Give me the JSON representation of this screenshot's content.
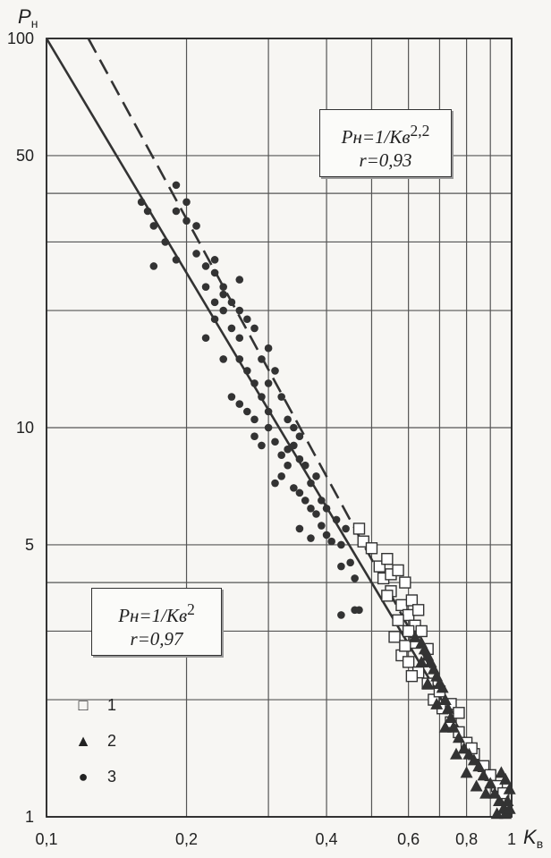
{
  "chart_data": {
    "type": "scatter",
    "x_scale": "log",
    "y_scale": "log",
    "xlim": [
      0.1,
      1
    ],
    "ylim": [
      1,
      100
    ],
    "xlabel": "Kв",
    "ylabel": "Pн",
    "x_tick_labels": [
      "0,1",
      "0,2",
      "0,4",
      "0,6",
      "0,8",
      "1"
    ],
    "y_tick_labels": [
      "100",
      "50",
      "10",
      "5",
      "1"
    ],
    "grid": true,
    "curves": [
      {
        "formula_prefix": "Pн=1/Kв",
        "exponent": "2",
        "r": "r=0,97",
        "style": "solid",
        "exponent_value": 2.0,
        "x": [
          0.1,
          1
        ],
        "y": [
          100,
          1
        ]
      },
      {
        "formula_prefix": "Pн=1/Kв",
        "exponent": "2,2",
        "r": "r=0,93",
        "style": "dashed",
        "exponent_value": 2.2,
        "x": [
          0.123,
          0.7
        ],
        "y": [
          100,
          2.19
        ]
      }
    ],
    "legend": {
      "placement": "bottom-left",
      "entries": [
        {
          "marker": "square",
          "label": "1"
        },
        {
          "marker": "triangle",
          "label": "2"
        },
        {
          "marker": "circle",
          "label": "3"
        }
      ]
    },
    "series": [
      {
        "legend": "1",
        "marker": "square",
        "points": [
          [
            0.47,
            5.5
          ],
          [
            0.48,
            5.1
          ],
          [
            0.5,
            4.9
          ],
          [
            0.52,
            4.4
          ],
          [
            0.53,
            4.1
          ],
          [
            0.54,
            4.6
          ],
          [
            0.55,
            4.2
          ],
          [
            0.55,
            3.8
          ],
          [
            0.57,
            4.3
          ],
          [
            0.58,
            3.5
          ],
          [
            0.59,
            4.0
          ],
          [
            0.6,
            3.3
          ],
          [
            0.61,
            3.6
          ],
          [
            0.62,
            3.1
          ],
          [
            0.63,
            3.4
          ],
          [
            0.6,
            3.0
          ],
          [
            0.62,
            2.8
          ],
          [
            0.64,
            3.0
          ],
          [
            0.66,
            2.7
          ],
          [
            0.56,
            2.9
          ],
          [
            0.58,
            2.6
          ],
          [
            0.6,
            2.5
          ],
          [
            0.63,
            2.35
          ],
          [
            0.66,
            2.2
          ],
          [
            0.68,
            2.0
          ],
          [
            0.71,
            1.9
          ],
          [
            0.74,
            1.75
          ],
          [
            0.77,
            1.65
          ],
          [
            0.8,
            1.55
          ],
          [
            0.83,
            1.45
          ],
          [
            0.87,
            1.35
          ],
          [
            0.9,
            1.28
          ],
          [
            0.93,
            1.2
          ],
          [
            0.96,
            1.15
          ],
          [
            0.74,
            1.95
          ],
          [
            0.77,
            1.85
          ],
          [
            0.54,
            3.7
          ],
          [
            0.57,
            3.2
          ],
          [
            0.59,
            2.75
          ],
          [
            0.61,
            2.3
          ],
          [
            0.7,
            2.1
          ],
          [
            0.82,
            1.5
          ]
        ]
      },
      {
        "legend": "2",
        "marker": "triangle",
        "points": [
          [
            0.62,
            2.9
          ],
          [
            0.64,
            2.8
          ],
          [
            0.65,
            2.7
          ],
          [
            0.66,
            2.6
          ],
          [
            0.67,
            2.5
          ],
          [
            0.68,
            2.4
          ],
          [
            0.69,
            2.3
          ],
          [
            0.7,
            2.2
          ],
          [
            0.71,
            2.15
          ],
          [
            0.72,
            2.0
          ],
          [
            0.73,
            1.9
          ],
          [
            0.74,
            1.8
          ],
          [
            0.75,
            1.7
          ],
          [
            0.77,
            1.6
          ],
          [
            0.79,
            1.5
          ],
          [
            0.81,
            1.45
          ],
          [
            0.83,
            1.4
          ],
          [
            0.85,
            1.35
          ],
          [
            0.87,
            1.28
          ],
          [
            0.9,
            1.22
          ],
          [
            0.92,
            1.15
          ],
          [
            0.94,
            1.1
          ],
          [
            0.96,
            1.05
          ],
          [
            0.98,
            1.1
          ],
          [
            0.99,
            1.18
          ],
          [
            0.97,
            1.25
          ],
          [
            0.95,
            1.3
          ],
          [
            0.88,
            1.15
          ],
          [
            0.84,
            1.2
          ],
          [
            0.8,
            1.3
          ],
          [
            0.76,
            1.45
          ],
          [
            0.72,
            1.7
          ],
          [
            0.69,
            1.95
          ],
          [
            0.66,
            2.2
          ],
          [
            0.64,
            2.5
          ],
          [
            0.93,
            1.02
          ],
          [
            0.97,
            1.02
          ],
          [
            0.99,
            1.05
          ]
        ]
      },
      {
        "legend": "3",
        "marker": "circle",
        "points": [
          [
            0.16,
            38
          ],
          [
            0.165,
            36
          ],
          [
            0.17,
            33
          ],
          [
            0.19,
            42
          ],
          [
            0.2,
            38
          ],
          [
            0.19,
            36
          ],
          [
            0.2,
            34
          ],
          [
            0.21,
            33
          ],
          [
            0.17,
            26
          ],
          [
            0.18,
            30
          ],
          [
            0.19,
            27
          ],
          [
            0.21,
            28
          ],
          [
            0.22,
            26
          ],
          [
            0.23,
            25
          ],
          [
            0.22,
            23
          ],
          [
            0.24,
            22
          ],
          [
            0.23,
            21
          ],
          [
            0.24,
            20
          ],
          [
            0.25,
            18
          ],
          [
            0.26,
            17
          ],
          [
            0.22,
            17
          ],
          [
            0.23,
            19
          ],
          [
            0.24,
            15
          ],
          [
            0.26,
            15
          ],
          [
            0.27,
            14
          ],
          [
            0.28,
            13
          ],
          [
            0.25,
            12
          ],
          [
            0.26,
            11.5
          ],
          [
            0.27,
            11
          ],
          [
            0.28,
            10.5
          ],
          [
            0.29,
            12
          ],
          [
            0.3,
            11
          ],
          [
            0.28,
            9.5
          ],
          [
            0.29,
            9
          ],
          [
            0.3,
            10
          ],
          [
            0.31,
            9.2
          ],
          [
            0.32,
            8.5
          ],
          [
            0.33,
            8.8
          ],
          [
            0.34,
            9
          ],
          [
            0.33,
            8
          ],
          [
            0.35,
            8.3
          ],
          [
            0.36,
            8
          ],
          [
            0.31,
            7.2
          ],
          [
            0.32,
            7.5
          ],
          [
            0.34,
            7.0
          ],
          [
            0.35,
            6.8
          ],
          [
            0.36,
            6.5
          ],
          [
            0.38,
            7.5
          ],
          [
            0.37,
            7.2
          ],
          [
            0.39,
            6.5
          ],
          [
            0.38,
            6
          ],
          [
            0.39,
            5.6
          ],
          [
            0.4,
            6.2
          ],
          [
            0.42,
            5.8
          ],
          [
            0.44,
            5.5
          ],
          [
            0.41,
            5.1
          ],
          [
            0.43,
            5.0
          ],
          [
            0.35,
            5.5
          ],
          [
            0.37,
            5.2
          ],
          [
            0.43,
            4.4
          ],
          [
            0.45,
            4.5
          ],
          [
            0.46,
            4.1
          ],
          [
            0.43,
            3.3
          ],
          [
            0.46,
            3.4
          ],
          [
            0.47,
            3.4
          ],
          [
            0.26,
            20
          ],
          [
            0.27,
            19
          ],
          [
            0.28,
            18
          ],
          [
            0.3,
            16
          ],
          [
            0.31,
            14
          ],
          [
            0.32,
            12
          ],
          [
            0.33,
            10.5
          ],
          [
            0.34,
            10
          ],
          [
            0.35,
            9.5
          ],
          [
            0.24,
            23
          ],
          [
            0.25,
            21
          ],
          [
            0.26,
            24
          ],
          [
            0.23,
            27
          ],
          [
            0.29,
            15
          ],
          [
            0.3,
            13
          ],
          [
            0.37,
            6.2
          ],
          [
            0.4,
            5.3
          ]
        ]
      }
    ]
  }
}
